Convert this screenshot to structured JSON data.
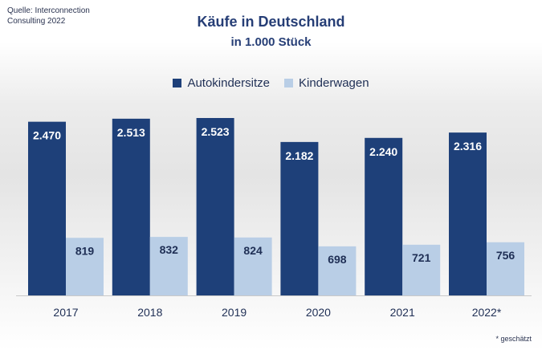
{
  "source": "Quelle: Interconnection Consulting 2022",
  "footnote": "* geschätzt",
  "colors": {
    "series1": "#1e4079",
    "series2": "#b9cee6",
    "title": "#263e76"
  },
  "chart_data": {
    "type": "bar",
    "title": "Käufe in Deutschland",
    "subtitle": "in 1.000 Stück",
    "categories": [
      "2017",
      "2018",
      "2019",
      "2020",
      "2021",
      "2022*"
    ],
    "series": [
      {
        "name": "Autokindersitze",
        "values": [
          2470,
          2513,
          2523,
          2182,
          2240,
          2316
        ],
        "labels": [
          "2.470",
          "2.513",
          "2.523",
          "2.182",
          "2.240",
          "2.316"
        ]
      },
      {
        "name": "Kinderwagen",
        "values": [
          819,
          832,
          824,
          698,
          721,
          756
        ],
        "labels": [
          "819",
          "832",
          "824",
          "698",
          "721",
          "756"
        ]
      }
    ],
    "ylim": [
      0,
      2523
    ],
    "grid": false,
    "legend": "top-center"
  }
}
